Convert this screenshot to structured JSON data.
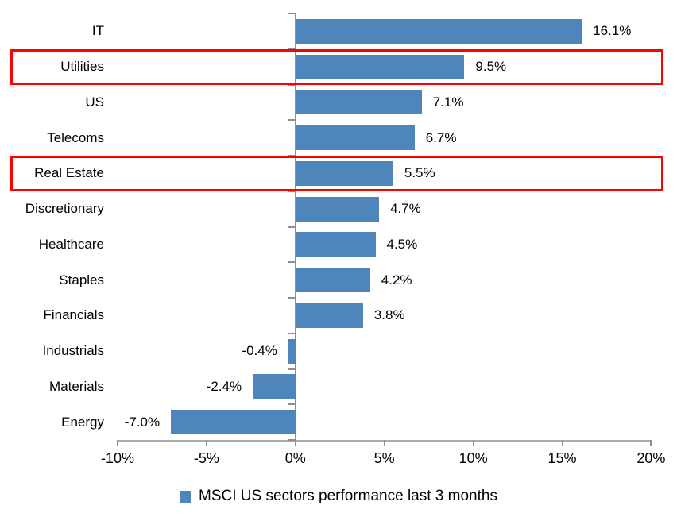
{
  "chart_data": {
    "type": "bar",
    "orientation": "horizontal",
    "title": "",
    "categories": [
      "IT",
      "Utilities",
      "US",
      "Telecoms",
      "Real Estate",
      "Discretionary",
      "Healthcare",
      "Staples",
      "Financials",
      "Industrials",
      "Materials",
      "Energy"
    ],
    "values": [
      16.1,
      9.5,
      7.1,
      6.7,
      5.5,
      4.7,
      4.5,
      4.2,
      3.8,
      -0.4,
      -2.4,
      -7.0
    ],
    "value_labels": [
      "16.1%",
      "9.5%",
      "7.1%",
      "6.7%",
      "5.5%",
      "4.7%",
      "4.5%",
      "4.2%",
      "3.8%",
      "-0.4%",
      "-2.4%",
      "-7.0%"
    ],
    "highlighted_categories": [
      "Utilities",
      "Real Estate"
    ],
    "x_axis": {
      "min": -10,
      "max": 20,
      "ticks": [
        -10,
        -5,
        0,
        5,
        10,
        15,
        20
      ],
      "tick_labels": [
        "-10%",
        "-5%",
        "0%",
        "5%",
        "10%",
        "15%",
        "20%"
      ]
    },
    "legend": {
      "label": "MSCI US sectors performance last 3 months",
      "position": "bottom"
    },
    "colors": {
      "bar": "#4E86BC",
      "highlight_box": "#FF0000",
      "axis": "#8E8E8E",
      "axis_line": "#ACACAC",
      "text": "#000000"
    },
    "grid": false
  }
}
